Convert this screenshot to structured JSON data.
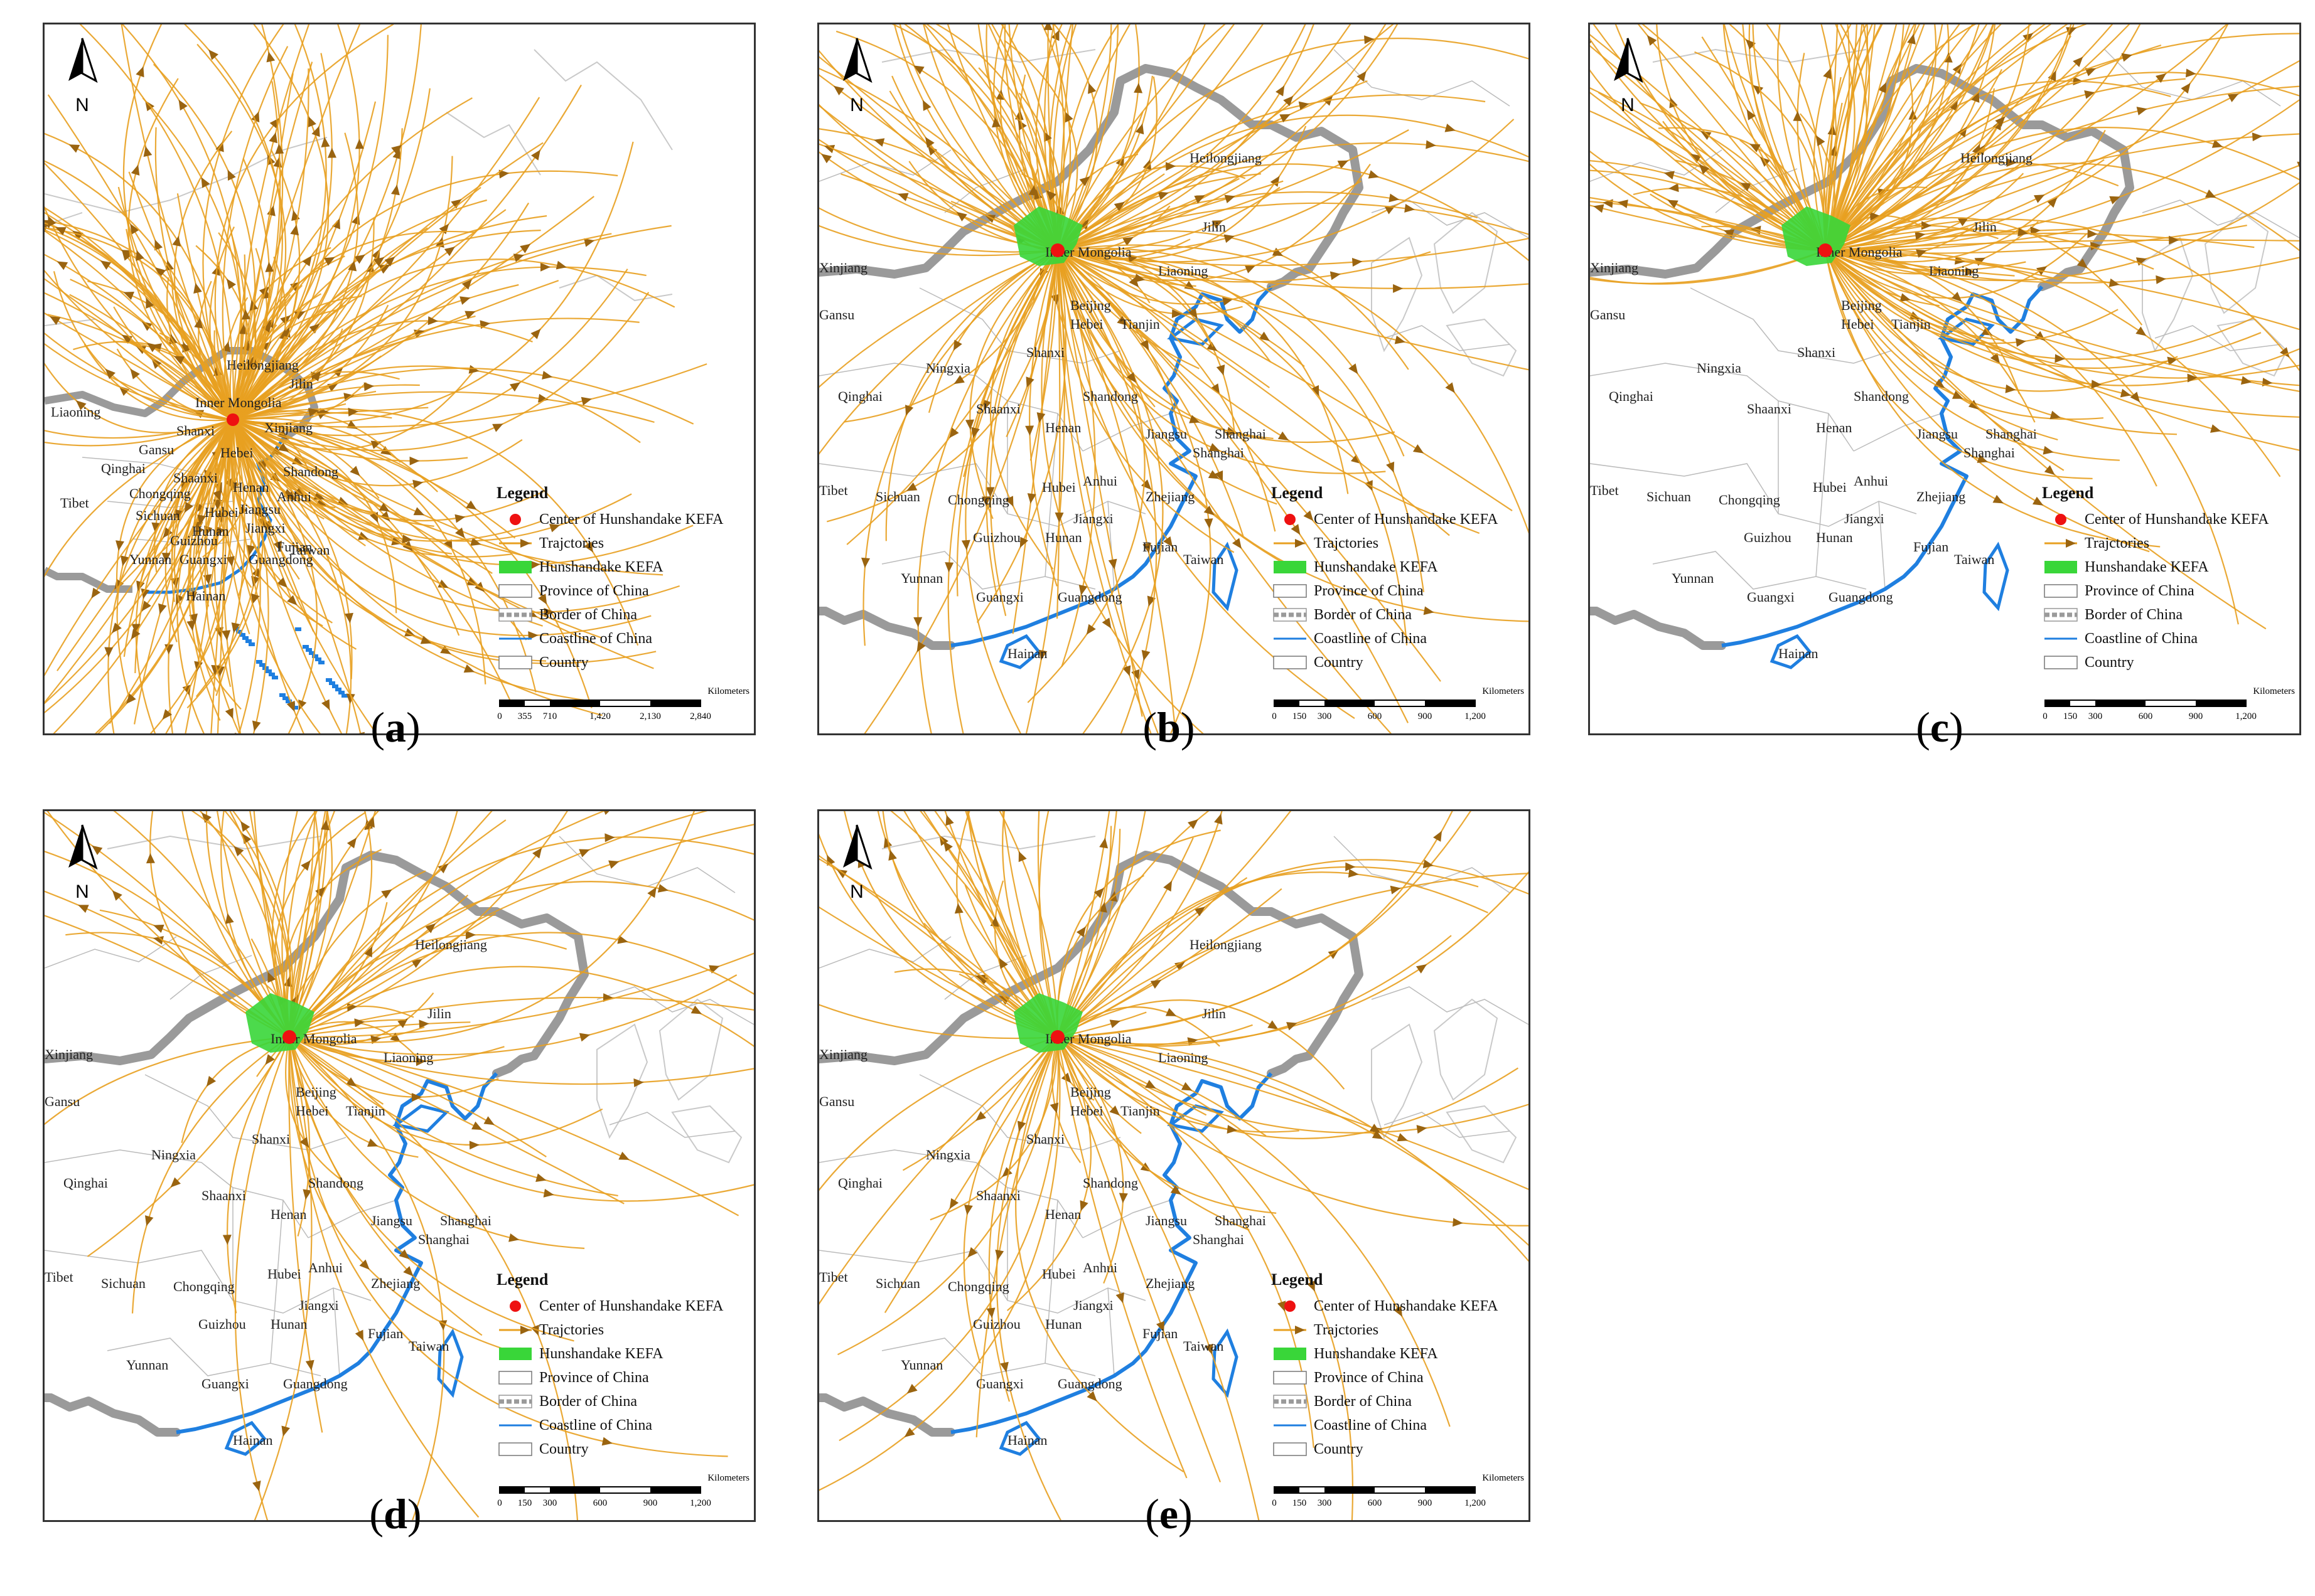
{
  "panels": [
    {
      "id": "a",
      "caption": "a",
      "labels": [
        "Heilongjiang",
        "Jilin",
        "Inner Mongolia",
        "Liaoning",
        "Xinjiang",
        "Shanxi",
        "Gansu",
        "Hebei",
        "Qinghai",
        "Shandong",
        "Shaanxi",
        "Henan",
        "Jiangsu",
        "Chongqing",
        "Anhui",
        "Tibet",
        "Sichuan",
        "Hubei",
        "Hunan",
        "Jiangxi",
        "Guizhou",
        "Fujian",
        "Taiwan",
        "Yunnan",
        "Guangxi",
        "Guangdong",
        "Hainan"
      ],
      "scale_ticks": [
        "0",
        "355",
        "710",
        "1,420",
        "2,130",
        "2,840"
      ]
    },
    {
      "id": "b",
      "caption": "b",
      "labels": [
        "Heilongjiang",
        "Jilin",
        "Inner Mongolia",
        "Xinjiang",
        "Liaoning",
        "Gansu",
        "Beijing",
        "Tianjin",
        "Hebei",
        "Shanxi",
        "Ningxia",
        "Qinghai",
        "Shandong",
        "Shaanxi",
        "Henan",
        "Jiangsu",
        "Shanghai",
        "Shanghai",
        "Tibet",
        "Sichuan",
        "Chongqing",
        "Hubei",
        "Anhui",
        "Zhejiang",
        "Jiangxi",
        "Hunan",
        "Guizhou",
        "Fujian",
        "Yunnan",
        "Taiwan",
        "Guangxi",
        "Guangdong",
        "Hainan"
      ],
      "scale_ticks": [
        "0",
        "150",
        "300",
        "600",
        "900",
        "1,200"
      ]
    },
    {
      "id": "c",
      "caption": "c",
      "labels": [
        "Heilongjiang",
        "Jilin",
        "Inner Mongolia",
        "Xinjiang",
        "Liaoning",
        "Gansu",
        "Beijing",
        "Tianjin",
        "Hebei",
        "Shanxi",
        "Ningxia",
        "Qinghai",
        "Shandong",
        "Shaanxi",
        "Henan",
        "Jiangsu",
        "Shanghai",
        "Shanghai",
        "Tibet",
        "Sichuan",
        "Chongqing",
        "Hubei",
        "Anhui",
        "Zhejiang",
        "Jiangxi",
        "Hunan",
        "Guizhou",
        "Fujian",
        "Yunnan",
        "Taiwan",
        "Guangxi",
        "Guangdong",
        "Hainan"
      ],
      "scale_ticks": [
        "0",
        "150",
        "300",
        "600",
        "900",
        "1,200"
      ]
    },
    {
      "id": "d",
      "caption": "d",
      "labels": [
        "Heilongjiang",
        "Jilin",
        "Inner Mongolia",
        "Xinjiang",
        "Liaoning",
        "Gansu",
        "Beijing",
        "Tianjin",
        "Hebei",
        "Shanxi",
        "Ningxia",
        "Qinghai",
        "Shandong",
        "Shaanxi",
        "Henan",
        "Jiangsu",
        "Shanghai",
        "Shanghai",
        "Tibet",
        "Sichuan",
        "Chongqing",
        "Hubei",
        "Anhui",
        "Zhejiang",
        "Jiangxi",
        "Hunan",
        "Guizhou",
        "Fujian",
        "Yunnan",
        "Taiwan",
        "Guangxi",
        "Guangdong",
        "Hainan"
      ],
      "scale_ticks": [
        "0",
        "150",
        "300",
        "600",
        "900",
        "1,200"
      ]
    },
    {
      "id": "e",
      "caption": "e",
      "labels": [
        "Heilongjiang",
        "Jilin",
        "Inner Mongolia",
        "Xinjiang",
        "Liaoning",
        "Gansu",
        "Beijing",
        "Tianjin",
        "Hebei",
        "Shanxi",
        "Ningxia",
        "Qinghai",
        "Shandong",
        "Shaanxi",
        "Henan",
        "Jiangsu",
        "Shanghai",
        "Shanghai",
        "Tibet",
        "Sichuan",
        "Chongqing",
        "Hubei",
        "Anhui",
        "Zhejiang",
        "Jiangxi",
        "Hunan",
        "Guizhou",
        "Fujian",
        "Yunnan",
        "Taiwan",
        "Guangxi",
        "Guangdong",
        "Hainan"
      ],
      "scale_ticks": [
        "0",
        "150",
        "300",
        "600",
        "900",
        "1,200"
      ]
    }
  ],
  "legend": {
    "title": "Legend",
    "items": [
      {
        "label": "Center of Hunshandake KEFA",
        "symbol": "red-dot"
      },
      {
        "label": "Trajctories",
        "symbol": "arrow-line"
      },
      {
        "label": "Hunshandake KEFA",
        "symbol": "green-patch"
      },
      {
        "label": "Province of China",
        "symbol": "white-box"
      },
      {
        "label": "Border of China",
        "symbol": "gray-dashed"
      },
      {
        "label": "Coastline of China",
        "symbol": "blue-line"
      },
      {
        "label": "Country",
        "symbol": "white-box"
      }
    ]
  },
  "north_label": "N",
  "scale_unit": "Kilometers",
  "colors": {
    "trajectory": "#e8a020",
    "trajectory_arrow": "#9a6410",
    "border": "#9a9a9a",
    "coastline": "#1f7fe0",
    "kefa": "#39d639",
    "center": "#ee1111",
    "province_line": "#bbbbbb"
  }
}
